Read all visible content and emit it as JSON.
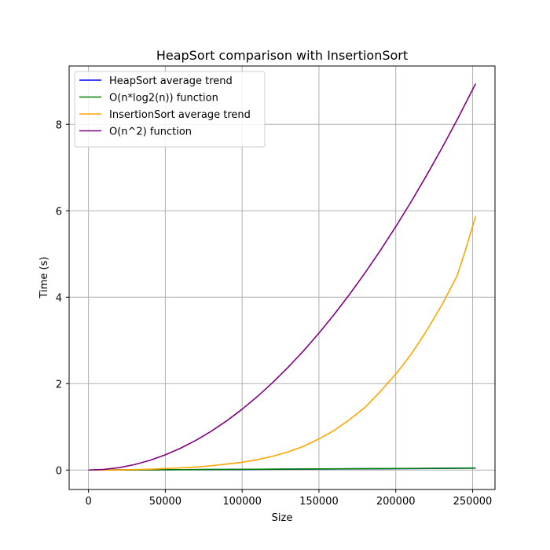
{
  "chart_data": {
    "type": "line",
    "title": "HeapSort comparison with InsertionSort",
    "xlabel": "Size",
    "ylabel": "Time (s)",
    "xlim": [
      -12600,
      264600
    ],
    "ylim": [
      -0.45,
      9.35
    ],
    "xticks": [
      0,
      50000,
      100000,
      150000,
      200000,
      250000
    ],
    "xtick_labels": [
      "0",
      "50000",
      "100000",
      "150000",
      "200000",
      "250000"
    ],
    "yticks": [
      0,
      2,
      4,
      6,
      8
    ],
    "ytick_labels": [
      "0",
      "2",
      "4",
      "6",
      "8"
    ],
    "grid": true,
    "legend_position": "top-left",
    "series": [
      {
        "name": "HeapSort average trend",
        "color": "#0000ff",
        "x": [
          0,
          25000,
          50000,
          75000,
          100000,
          125000,
          150000,
          175000,
          200000,
          225000,
          252000
        ],
        "y": [
          0,
          0.003,
          0.007,
          0.011,
          0.015,
          0.019,
          0.024,
          0.028,
          0.033,
          0.038,
          0.043
        ]
      },
      {
        "name": "O(n*log2(n)) function",
        "color": "#008000",
        "x": [
          0,
          25000,
          50000,
          75000,
          100000,
          125000,
          150000,
          175000,
          200000,
          225000,
          252000
        ],
        "y": [
          0,
          0.003,
          0.007,
          0.012,
          0.016,
          0.021,
          0.026,
          0.031,
          0.036,
          0.041,
          0.046
        ]
      },
      {
        "name": "InsertionSort average trend",
        "color": "#ffa500",
        "x": [
          0,
          10000,
          20000,
          30000,
          40000,
          50000,
          60000,
          70000,
          80000,
          90000,
          100000,
          110000,
          120000,
          130000,
          140000,
          150000,
          160000,
          170000,
          180000,
          190000,
          200000,
          210000,
          220000,
          230000,
          240000,
          245000,
          252000
        ],
        "y": [
          0,
          0.001,
          0.004,
          0.01,
          0.02,
          0.035,
          0.05,
          0.07,
          0.1,
          0.14,
          0.18,
          0.24,
          0.32,
          0.42,
          0.55,
          0.72,
          0.92,
          1.17,
          1.45,
          1.82,
          2.22,
          2.68,
          3.22,
          3.82,
          4.5,
          5.05,
          5.87
        ]
      },
      {
        "name": "O(n^2) function",
        "color": "#800080",
        "x": [
          0,
          10000,
          20000,
          30000,
          40000,
          50000,
          60000,
          70000,
          80000,
          90000,
          100000,
          110000,
          120000,
          130000,
          140000,
          150000,
          160000,
          170000,
          180000,
          190000,
          200000,
          210000,
          220000,
          230000,
          240000,
          252000
        ],
        "y": [
          0,
          0.014,
          0.056,
          0.127,
          0.225,
          0.352,
          0.507,
          0.69,
          0.901,
          1.14,
          1.408,
          1.704,
          2.028,
          2.38,
          2.76,
          3.168,
          3.605,
          4.07,
          4.562,
          5.083,
          5.632,
          6.209,
          6.815,
          7.448,
          8.11,
          8.941
        ]
      }
    ]
  }
}
